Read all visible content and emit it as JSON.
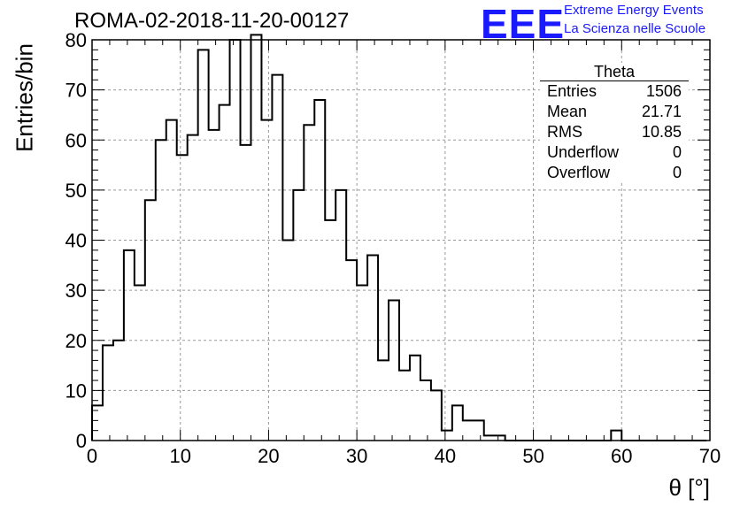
{
  "title": "ROMA-02-2018-11-20-00127",
  "logo": {
    "mark": "EEE",
    "line1": "Extreme Energy Events",
    "line2": "La Scienza nelle Scuole",
    "color": "#1a1aff"
  },
  "stats_box": {
    "title": "Theta",
    "rows": [
      {
        "label": "Entries",
        "value": "1506"
      },
      {
        "label": "Mean",
        "value": "21.71"
      },
      {
        "label": "RMS",
        "value": "10.85"
      },
      {
        "label": "Underflow",
        "value": "0"
      },
      {
        "label": "Overflow",
        "value": "0"
      }
    ]
  },
  "chart_data": {
    "type": "histogram",
    "xlabel": "θ [°]",
    "ylabel": "Entries/bin",
    "xlim": [
      0,
      70
    ],
    "ylim": [
      0,
      80
    ],
    "bin_width": 1.2,
    "x_ticks": [
      "0",
      "10",
      "20",
      "30",
      "40",
      "50",
      "60",
      "70"
    ],
    "y_ticks": [
      "0",
      "10",
      "20",
      "30",
      "40",
      "50",
      "60",
      "70",
      "80"
    ],
    "grid": true,
    "values": [
      7,
      19,
      20,
      38,
      31,
      48,
      60,
      64,
      57,
      61,
      78,
      62,
      67,
      80,
      59,
      81,
      64,
      73,
      40,
      50,
      63,
      68,
      44,
      50,
      36,
      31,
      37,
      16,
      28,
      14,
      17,
      12,
      10,
      2,
      7,
      4,
      4,
      1,
      1,
      0,
      0,
      0,
      0,
      0,
      0,
      0,
      0,
      0,
      0,
      2,
      0,
      0,
      0,
      0,
      0,
      0,
      0,
      0
    ],
    "line_color": "#000000"
  }
}
